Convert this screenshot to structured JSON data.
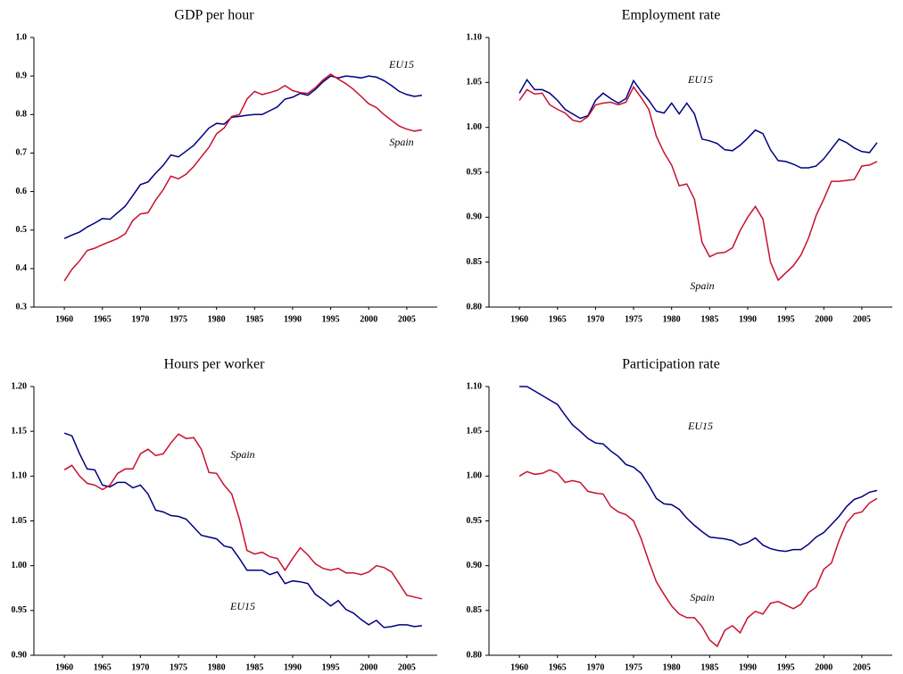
{
  "chart_data": [
    {
      "type": "line",
      "title": "GDP per hour",
      "x": [
        1960,
        1961,
        1962,
        1963,
        1964,
        1965,
        1966,
        1967,
        1968,
        1969,
        1970,
        1971,
        1972,
        1973,
        1974,
        1975,
        1976,
        1977,
        1978,
        1979,
        1980,
        1981,
        1982,
        1983,
        1984,
        1985,
        1986,
        1987,
        1988,
        1989,
        1990,
        1991,
        1992,
        1993,
        1994,
        1995,
        1996,
        1997,
        1998,
        1999,
        2000,
        2001,
        2002,
        2003,
        2004,
        2005,
        2006,
        2007
      ],
      "series": [
        {
          "name": "EU15",
          "color": "#000080",
          "values": [
            0.478,
            0.487,
            0.495,
            0.508,
            0.518,
            0.53,
            0.528,
            0.545,
            0.562,
            0.59,
            0.618,
            0.625,
            0.648,
            0.668,
            0.695,
            0.69,
            0.705,
            0.72,
            0.742,
            0.765,
            0.777,
            0.775,
            0.793,
            0.795,
            0.798,
            0.8,
            0.8,
            0.81,
            0.82,
            0.84,
            0.845,
            0.855,
            0.85,
            0.865,
            0.885,
            0.9,
            0.895,
            0.9,
            0.898,
            0.895,
            0.9,
            0.897,
            0.888,
            0.875,
            0.86,
            0.852,
            0.847,
            0.85
          ]
        },
        {
          "name": "Spain",
          "color": "#c8102e",
          "values": [
            0.368,
            0.398,
            0.42,
            0.447,
            0.453,
            0.462,
            0.47,
            0.478,
            0.49,
            0.525,
            0.542,
            0.545,
            0.578,
            0.605,
            0.64,
            0.633,
            0.645,
            0.665,
            0.69,
            0.715,
            0.75,
            0.765,
            0.795,
            0.8,
            0.84,
            0.86,
            0.852,
            0.857,
            0.863,
            0.875,
            0.862,
            0.857,
            0.855,
            0.87,
            0.89,
            0.905,
            0.892,
            0.88,
            0.865,
            0.847,
            0.828,
            0.818,
            0.8,
            0.785,
            0.77,
            0.762,
            0.757,
            0.76
          ]
        }
      ],
      "xlim": [
        1956,
        2009
      ],
      "xticks": [
        1960,
        1965,
        1970,
        1975,
        1980,
        1985,
        1990,
        1995,
        2000,
        2005
      ],
      "ylim": [
        0.3,
        1.0
      ],
      "yticks": [
        {
          "value": 0.3,
          "label": "0.3"
        },
        {
          "value": 0.4,
          "label": "0.4"
        },
        {
          "value": 0.5,
          "label": "0.5"
        },
        {
          "value": 0.6,
          "label": "0.6"
        },
        {
          "value": 0.7,
          "label": "0.7"
        },
        {
          "value": 0.8,
          "label": "0.8"
        },
        {
          "value": 0.9,
          "label": "0.9"
        },
        {
          "value": 1.0,
          "label": "1.0"
        }
      ]
    },
    {
      "type": "line",
      "title": "Employment rate",
      "x": [
        1960,
        1961,
        1962,
        1963,
        1964,
        1965,
        1966,
        1967,
        1968,
        1969,
        1970,
        1971,
        1972,
        1973,
        1974,
        1975,
        1976,
        1977,
        1978,
        1979,
        1980,
        1981,
        1982,
        1983,
        1984,
        1985,
        1986,
        1987,
        1988,
        1989,
        1990,
        1991,
        1992,
        1993,
        1994,
        1995,
        1996,
        1997,
        1998,
        1999,
        2000,
        2001,
        2002,
        2003,
        2004,
        2005,
        2006,
        2007
      ],
      "series": [
        {
          "name": "EU15",
          "color": "#000080",
          "values": [
            1.038,
            1.053,
            1.042,
            1.042,
            1.038,
            1.03,
            1.02,
            1.015,
            1.01,
            1.013,
            1.03,
            1.038,
            1.032,
            1.027,
            1.032,
            1.052,
            1.04,
            1.03,
            1.018,
            1.016,
            1.027,
            1.015,
            1.027,
            1.015,
            0.987,
            0.985,
            0.982,
            0.975,
            0.974,
            0.98,
            0.988,
            0.997,
            0.993,
            0.975,
            0.963,
            0.962,
            0.959,
            0.955,
            0.955,
            0.957,
            0.965,
            0.976,
            0.987,
            0.983,
            0.977,
            0.973,
            0.972,
            0.983
          ]
        },
        {
          "name": "Spain",
          "color": "#c8102e",
          "values": [
            1.03,
            1.042,
            1.037,
            1.038,
            1.025,
            1.02,
            1.016,
            1.008,
            1.006,
            1.012,
            1.025,
            1.027,
            1.028,
            1.025,
            1.028,
            1.045,
            1.033,
            1.02,
            0.99,
            0.972,
            0.958,
            0.935,
            0.937,
            0.92,
            0.872,
            0.856,
            0.86,
            0.861,
            0.866,
            0.885,
            0.9,
            0.912,
            0.898,
            0.85,
            0.83,
            0.838,
            0.846,
            0.858,
            0.877,
            0.902,
            0.92,
            0.94,
            0.94,
            0.941,
            0.942,
            0.957,
            0.958,
            0.962
          ]
        }
      ],
      "xlim": [
        1956,
        2009
      ],
      "xticks": [
        1960,
        1965,
        1970,
        1975,
        1980,
        1985,
        1990,
        1995,
        2000,
        2005
      ],
      "ylim": [
        0.8,
        1.1
      ],
      "yticks": [
        {
          "value": 0.8,
          "label": "0.80"
        },
        {
          "value": 0.85,
          "label": "0.85"
        },
        {
          "value": 0.9,
          "label": "0.90"
        },
        {
          "value": 0.95,
          "label": "0.95"
        },
        {
          "value": 1.0,
          "label": "1.00"
        },
        {
          "value": 1.05,
          "label": "1.05"
        },
        {
          "value": 1.1,
          "label": "1.10"
        }
      ]
    },
    {
      "type": "line",
      "title": "Hours per worker",
      "x": [
        1960,
        1961,
        1962,
        1963,
        1964,
        1965,
        1966,
        1967,
        1968,
        1969,
        1970,
        1971,
        1972,
        1973,
        1974,
        1975,
        1976,
        1977,
        1978,
        1979,
        1980,
        1981,
        1982,
        1983,
        1984,
        1985,
        1986,
        1987,
        1988,
        1989,
        1990,
        1991,
        1992,
        1993,
        1994,
        1995,
        1996,
        1997,
        1998,
        1999,
        2000,
        2001,
        2002,
        2003,
        2004,
        2005,
        2006,
        2007
      ],
      "series": [
        {
          "name": "EU15",
          "color": "#000080",
          "values": [
            1.148,
            1.145,
            1.125,
            1.108,
            1.107,
            1.09,
            1.088,
            1.093,
            1.093,
            1.087,
            1.09,
            1.08,
            1.062,
            1.06,
            1.056,
            1.055,
            1.052,
            1.043,
            1.034,
            1.032,
            1.03,
            1.022,
            1.02,
            1.008,
            0.995,
            0.995,
            0.995,
            0.99,
            0.993,
            0.98,
            0.983,
            0.982,
            0.98,
            0.968,
            0.962,
            0.955,
            0.961,
            0.951,
            0.947,
            0.94,
            0.934,
            0.939,
            0.931,
            0.932,
            0.934,
            0.934,
            0.932,
            0.933
          ]
        },
        {
          "name": "Spain",
          "color": "#c8102e",
          "values": [
            1.107,
            1.112,
            1.1,
            1.092,
            1.09,
            1.085,
            1.09,
            1.103,
            1.108,
            1.108,
            1.125,
            1.13,
            1.123,
            1.125,
            1.137,
            1.147,
            1.142,
            1.143,
            1.13,
            1.104,
            1.103,
            1.09,
            1.08,
            1.052,
            1.017,
            1.013,
            1.015,
            1.01,
            1.008,
            0.995,
            1.008,
            1.02,
            1.012,
            1.002,
            0.997,
            0.995,
            0.997,
            0.992,
            0.992,
            0.99,
            0.993,
            1.0,
            0.998,
            0.993,
            0.98,
            0.967,
            0.965,
            0.963
          ]
        }
      ],
      "xlim": [
        1956,
        2009
      ],
      "xticks": [
        1960,
        1965,
        1970,
        1975,
        1980,
        1985,
        1990,
        1995,
        2000,
        2005
      ],
      "ylim": [
        0.9,
        1.2
      ],
      "yticks": [
        {
          "value": 0.9,
          "label": "0.90"
        },
        {
          "value": 0.95,
          "label": "0.95"
        },
        {
          "value": 1.0,
          "label": "1.00"
        },
        {
          "value": 1.05,
          "label": "1.05"
        },
        {
          "value": 1.1,
          "label": "1.10"
        },
        {
          "value": 1.15,
          "label": "1.15"
        },
        {
          "value": 1.2,
          "label": "1.20"
        }
      ]
    },
    {
      "type": "line",
      "title": "Participation rate",
      "x": [
        1960,
        1961,
        1962,
        1963,
        1964,
        1965,
        1966,
        1967,
        1968,
        1969,
        1970,
        1971,
        1972,
        1973,
        1974,
        1975,
        1976,
        1977,
        1978,
        1979,
        1980,
        1981,
        1982,
        1983,
        1984,
        1985,
        1986,
        1987,
        1988,
        1989,
        1990,
        1991,
        1992,
        1993,
        1994,
        1995,
        1996,
        1997,
        1998,
        1999,
        2000,
        2001,
        2002,
        2003,
        2004,
        2005,
        2006,
        2007
      ],
      "series": [
        {
          "name": "EU15",
          "color": "#000080",
          "values": [
            1.1,
            1.1,
            1.095,
            1.09,
            1.085,
            1.08,
            1.068,
            1.057,
            1.05,
            1.042,
            1.037,
            1.036,
            1.028,
            1.022,
            1.013,
            1.01,
            1.003,
            0.99,
            0.975,
            0.969,
            0.968,
            0.963,
            0.953,
            0.945,
            0.938,
            0.932,
            0.931,
            0.93,
            0.928,
            0.923,
            0.926,
            0.931,
            0.923,
            0.919,
            0.917,
            0.916,
            0.918,
            0.918,
            0.924,
            0.932,
            0.937,
            0.946,
            0.955,
            0.966,
            0.974,
            0.977,
            0.982,
            0.984
          ]
        },
        {
          "name": "Spain",
          "color": "#c8102e",
          "values": [
            1.0,
            1.005,
            1.002,
            1.003,
            1.007,
            1.003,
            0.993,
            0.995,
            0.993,
            0.983,
            0.981,
            0.98,
            0.966,
            0.96,
            0.957,
            0.95,
            0.93,
            0.905,
            0.882,
            0.868,
            0.855,
            0.846,
            0.842,
            0.842,
            0.832,
            0.817,
            0.81,
            0.828,
            0.833,
            0.825,
            0.842,
            0.849,
            0.846,
            0.858,
            0.86,
            0.856,
            0.852,
            0.857,
            0.87,
            0.876,
            0.896,
            0.903,
            0.928,
            0.948,
            0.958,
            0.96,
            0.97,
            0.975
          ]
        }
      ],
      "xlim": [
        1956,
        2009
      ],
      "xticks": [
        1960,
        1965,
        1970,
        1975,
        1980,
        1985,
        1990,
        1995,
        2000,
        2005
      ],
      "ylim": [
        0.8,
        1.1
      ],
      "yticks": [
        {
          "value": 0.8,
          "label": "0.80"
        },
        {
          "value": 0.85,
          "label": "0.85"
        },
        {
          "value": 0.9,
          "label": "0.90"
        },
        {
          "value": 0.95,
          "label": "0.95"
        },
        {
          "value": 1.0,
          "label": "1.00"
        },
        {
          "value": 1.05,
          "label": "1.05"
        },
        {
          "value": 1.1,
          "label": "1.10"
        }
      ]
    }
  ]
}
